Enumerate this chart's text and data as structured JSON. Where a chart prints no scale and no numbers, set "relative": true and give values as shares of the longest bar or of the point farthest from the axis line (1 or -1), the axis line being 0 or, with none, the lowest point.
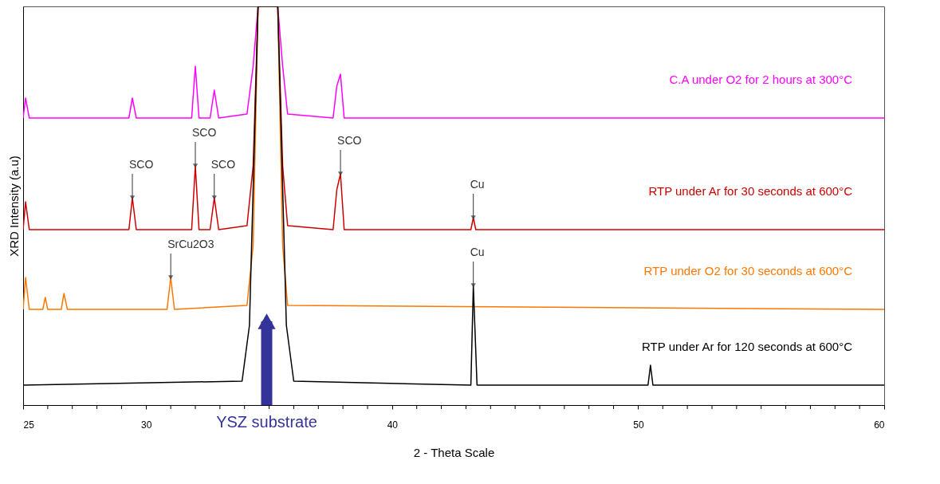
{
  "chart_data": {
    "type": "line",
    "relative": true,
    "xlabel": "2 - Theta Scale",
    "ylabel": "XRD Intensity (a.u)",
    "xlim": [
      25,
      60
    ],
    "xticks": [
      25,
      {
        "value": 26,
        "label": null
      },
      {
        "value": 27,
        "label": null
      },
      {
        "value": 28,
        "label": null
      },
      {
        "value": 29,
        "label": null
      },
      30,
      {
        "value": 31,
        "label": null
      },
      {
        "value": 32,
        "label": null
      },
      {
        "value": 33,
        "label": null
      },
      {
        "value": 34,
        "label": null
      },
      {
        "value": 35,
        "label": null
      },
      {
        "value": 36,
        "label": null
      },
      {
        "value": 37,
        "label": null
      },
      {
        "value": 38,
        "label": null
      },
      {
        "value": 39,
        "label": null
      },
      40,
      {
        "value": 41,
        "label": null
      },
      {
        "value": 42,
        "label": null
      },
      {
        "value": 43,
        "label": null
      },
      {
        "value": 44,
        "label": null
      },
      {
        "value": 45,
        "label": null
      },
      {
        "value": 46,
        "label": null
      },
      {
        "value": 47,
        "label": null
      },
      {
        "value": 48,
        "label": null
      },
      {
        "value": 49,
        "label": null
      },
      50,
      {
        "value": 51,
        "label": null
      },
      {
        "value": 52,
        "label": null
      },
      {
        "value": 53,
        "label": null
      },
      {
        "value": 54,
        "label": null
      },
      {
        "value": 55,
        "label": null
      },
      {
        "value": 56,
        "label": null
      },
      {
        "value": 57,
        "label": null
      },
      {
        "value": 58,
        "label": null
      },
      {
        "value": 59,
        "label": null
      },
      60
    ],
    "grid": false,
    "legend": false,
    "marker": "none",
    "line_style": "solid",
    "series": [
      {
        "name": "C.A under O2 for 2 hours at 300°C",
        "color": "#ff00ff",
        "x": [
          25.0,
          25.1,
          25.25,
          29.3,
          29.44,
          29.6,
          31.85,
          32.0,
          32.15,
          32.6,
          32.77,
          32.95,
          34.1,
          34.35,
          34.55,
          35.35,
          35.55,
          35.75,
          37.6,
          37.75,
          37.9,
          38.05,
          60
        ],
        "values": [
          0.72,
          0.77,
          0.72,
          0.72,
          0.77,
          0.72,
          0.72,
          0.85,
          0.72,
          0.72,
          0.79,
          0.72,
          0.73,
          0.85,
          1.0,
          1.0,
          0.85,
          0.73,
          0.72,
          0.8,
          0.83,
          0.72,
          0.72
        ]
      },
      {
        "name": "RTP under Ar for 30 seconds at 600°C",
        "color": "#cc0000",
        "x": [
          25.0,
          25.1,
          25.25,
          29.3,
          29.44,
          29.6,
          31.85,
          32.0,
          32.15,
          32.6,
          32.77,
          32.95,
          34.1,
          34.35,
          34.55,
          35.35,
          35.55,
          35.75,
          37.6,
          37.75,
          37.9,
          38.05,
          43.2,
          43.3,
          43.4,
          60
        ],
        "values": [
          0.44,
          0.51,
          0.44,
          0.44,
          0.52,
          0.44,
          0.44,
          0.6,
          0.44,
          0.44,
          0.52,
          0.44,
          0.45,
          0.6,
          1.0,
          1.0,
          0.6,
          0.45,
          0.44,
          0.54,
          0.58,
          0.44,
          0.44,
          0.47,
          0.44,
          0.44
        ]
      },
      {
        "name": "RTP under O2 for 30 seconds at 600°C",
        "color": "#ff7700",
        "x": [
          25.0,
          25.1,
          25.25,
          25.8,
          25.9,
          26.0,
          26.55,
          26.66,
          26.8,
          30.85,
          31.0,
          31.15,
          34.1,
          34.35,
          34.55,
          35.35,
          35.55,
          35.75,
          60
        ],
        "values": [
          0.24,
          0.32,
          0.24,
          0.24,
          0.27,
          0.24,
          0.24,
          0.28,
          0.24,
          0.24,
          0.32,
          0.24,
          0.25,
          0.4,
          1.0,
          1.0,
          0.4,
          0.25,
          0.24
        ]
      },
      {
        "name": "RTP under Ar for 120 seconds at 600°C",
        "color": "#000000",
        "x": [
          25.0,
          33.9,
          34.2,
          34.55,
          35.35,
          35.7,
          36.0,
          43.2,
          43.3,
          43.45,
          50.4,
          50.5,
          50.6,
          60
        ],
        "values": [
          0.05,
          0.06,
          0.2,
          1.0,
          1.0,
          0.2,
          0.06,
          0.05,
          0.3,
          0.05,
          0.05,
          0.1,
          0.05,
          0.05
        ]
      }
    ],
    "annotations": [
      {
        "text": "SCO",
        "x": 29.44,
        "y": 0.52
      },
      {
        "text": "SCO",
        "x": 32.0,
        "y": 0.6
      },
      {
        "text": "SCO",
        "x": 32.77,
        "y": 0.52
      },
      {
        "text": "SCO",
        "x": 37.9,
        "y": 0.58
      },
      {
        "text": "Cu",
        "x": 43.3,
        "y": 0.47
      },
      {
        "text": "Cu",
        "x": 43.3,
        "y": 0.3
      },
      {
        "text": "SrCu2O3",
        "x": 31.0,
        "y": 0.32
      },
      {
        "text": "YSZ substrate",
        "x": 34.9,
        "y": 0.21
      }
    ]
  }
}
